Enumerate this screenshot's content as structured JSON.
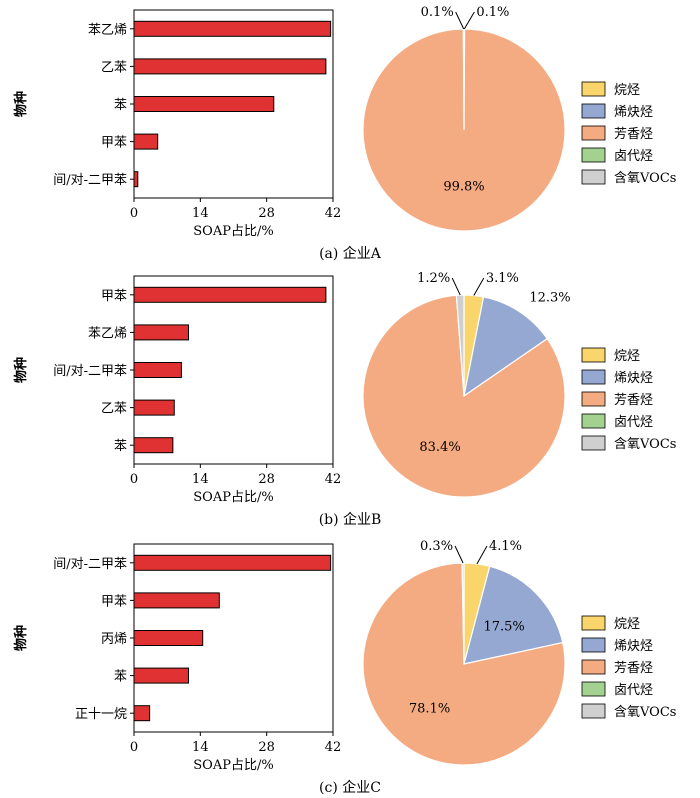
{
  "panels": [
    {
      "caption": "(a)  企业A",
      "chart_data": [
        {
          "type": "bar",
          "orientation": "horizontal",
          "categories": [
            "苯乙烯",
            "乙苯",
            "苯",
            "甲苯",
            "间/对-二甲苯"
          ],
          "values": [
            41.5,
            40.5,
            29.5,
            5,
            0.8
          ],
          "xlabel": "SOAP占比/%",
          "ylabel": "物种",
          "xlim": [
            0,
            42
          ],
          "xticks": [
            "0",
            "14",
            "28",
            "42"
          ],
          "bar_color": "#e03232"
        },
        {
          "type": "pie",
          "labels": [
            "烷烃",
            "烯炔烃",
            "芳香烃",
            "卤代烃",
            "含氧VOCs"
          ],
          "values": [
            0.1,
            0,
            99.8,
            0,
            0.1
          ],
          "value_labels": [
            {
              "slice": 0,
              "text": "0.1%",
              "placement": "callout-right"
            },
            {
              "slice": 2,
              "text": "99.8%",
              "placement": "inside"
            },
            {
              "slice": 4,
              "text": "0.1%",
              "placement": "callout-left"
            }
          ]
        }
      ]
    },
    {
      "caption": "(b)  企业B",
      "chart_data": [
        {
          "type": "bar",
          "orientation": "horizontal",
          "categories": [
            "甲苯",
            "苯乙烯",
            "间/对-二甲苯",
            "乙苯",
            "苯"
          ],
          "values": [
            40.5,
            11.5,
            10,
            8.5,
            8.2
          ],
          "xlabel": "SOAP占比/%",
          "ylabel": "物种",
          "xlim": [
            0,
            42
          ],
          "xticks": [
            "0",
            "14",
            "28",
            "42"
          ],
          "bar_color": "#e03232"
        },
        {
          "type": "pie",
          "labels": [
            "烷烃",
            "烯炔烃",
            "芳香烃",
            "卤代烃",
            "含氧VOCs"
          ],
          "values": [
            3.1,
            12.3,
            83.4,
            0,
            1.2
          ],
          "value_labels": [
            {
              "slice": 0,
              "text": "3.1%",
              "placement": "callout-right"
            },
            {
              "slice": 1,
              "text": "12.3%",
              "placement": "outside"
            },
            {
              "slice": 2,
              "text": "83.4%",
              "placement": "inside"
            },
            {
              "slice": 4,
              "text": "1.2%",
              "placement": "callout-left"
            }
          ]
        }
      ]
    },
    {
      "caption": "(c)  企业C",
      "chart_data": [
        {
          "type": "bar",
          "orientation": "horizontal",
          "categories": [
            "间/对-二甲苯",
            "甲苯",
            "丙烯",
            "苯",
            "正十一烷"
          ],
          "values": [
            41.5,
            18,
            14.5,
            11.5,
            3.3
          ],
          "xlabel": "SOAP占比/%",
          "ylabel": "物种",
          "xlim": [
            0,
            42
          ],
          "xticks": [
            "0",
            "14",
            "28",
            "42"
          ],
          "bar_color": "#e03232"
        },
        {
          "type": "pie",
          "labels": [
            "烷烃",
            "烯炔烃",
            "芳香烃",
            "卤代烃",
            "含氧VOCs"
          ],
          "values": [
            4.1,
            17.5,
            78.1,
            0,
            0.3
          ],
          "value_labels": [
            {
              "slice": 0,
              "text": "4.1%",
              "placement": "callout-right"
            },
            {
              "slice": 1,
              "text": "17.5%",
              "placement": "inside"
            },
            {
              "slice": 2,
              "text": "78.1%",
              "placement": "inside"
            },
            {
              "slice": 4,
              "text": "0.3%",
              "placement": "callout-left"
            }
          ]
        }
      ]
    }
  ],
  "legend": {
    "items": [
      {
        "label": "烷烃",
        "color": "#f9d56c"
      },
      {
        "label": "烯炔烃",
        "color": "#94a8d2"
      },
      {
        "label": "芳香烃",
        "color": "#f5ab82"
      },
      {
        "label": "卤代烃",
        "color": "#a3d190"
      },
      {
        "label": "含氧VOCs",
        "color": "#cfcfcf"
      }
    ]
  }
}
